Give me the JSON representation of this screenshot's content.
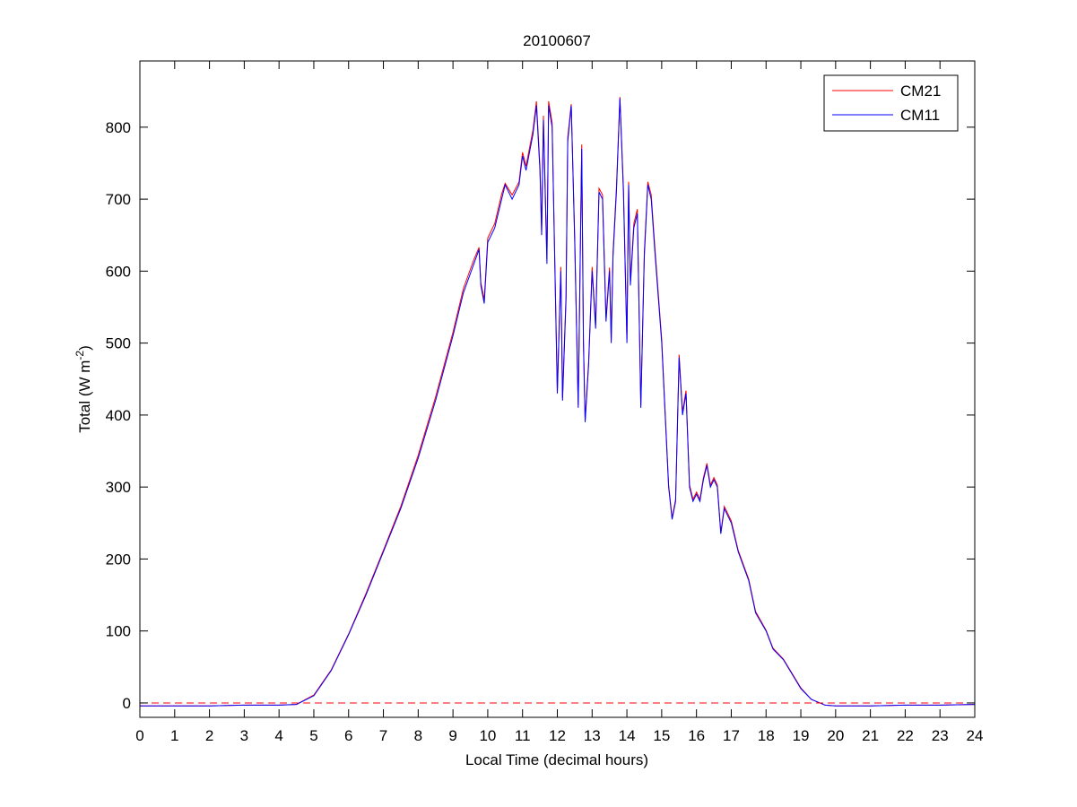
{
  "chart_data": {
    "type": "line",
    "title": "20100607",
    "xlabel": "Local Time (decimal hours)",
    "ylabel": "Total (W m",
    "ylabel_sup": "-2",
    "ylabel_end": ")",
    "xlim": [
      0,
      24
    ],
    "ylim": [
      -20,
      892
    ],
    "xticks": [
      0,
      1,
      2,
      3,
      4,
      5,
      6,
      7,
      8,
      9,
      10,
      11,
      12,
      13,
      14,
      15,
      16,
      17,
      18,
      19,
      20,
      21,
      22,
      23,
      24
    ],
    "yticks": [
      0,
      100,
      200,
      300,
      400,
      500,
      600,
      700,
      800
    ],
    "grid": false,
    "legend_position": "top-right",
    "reference_line": {
      "y": 0,
      "style": "dashed",
      "color": "#ff0000"
    },
    "x": [
      0,
      1,
      2,
      3,
      4,
      4.5,
      5,
      5.5,
      6,
      6.5,
      7,
      7.5,
      8,
      8.5,
      9,
      9.3,
      9.6,
      9.75,
      9.8,
      9.9,
      10,
      10.2,
      10.4,
      10.5,
      10.7,
      10.9,
      11,
      11.1,
      11.3,
      11.4,
      11.5,
      11.55,
      11.6,
      11.7,
      11.75,
      11.85,
      12,
      12.1,
      12.15,
      12.25,
      12.3,
      12.4,
      12.5,
      12.6,
      12.7,
      12.75,
      12.8,
      12.9,
      13,
      13.1,
      13.2,
      13.3,
      13.4,
      13.5,
      13.55,
      13.6,
      13.7,
      13.8,
      13.9,
      14,
      14.05,
      14.1,
      14.2,
      14.3,
      14.4,
      14.5,
      14.6,
      14.7,
      14.8,
      15,
      15.2,
      15.3,
      15.4,
      15.5,
      15.6,
      15.7,
      15.8,
      15.9,
      16,
      16.1,
      16.2,
      16.3,
      16.4,
      16.5,
      16.6,
      16.7,
      16.8,
      17,
      17.2,
      17.5,
      17.7,
      18,
      18.2,
      18.5,
      19,
      19.3,
      19.7,
      20,
      21,
      22,
      23,
      24
    ],
    "series": [
      {
        "name": "CM21",
        "color": "#ff0000",
        "values": [
          -4,
          -4,
          -4,
          -3,
          -3,
          -2,
          11,
          46,
          96,
          152,
          212,
          273,
          344,
          425,
          515,
          576,
          616,
          633,
          584,
          560,
          646,
          666,
          707,
          722,
          706,
          724,
          765,
          746,
          796,
          836,
          746,
          656,
          816,
          616,
          836,
          806,
          434,
          606,
          424,
          566,
          786,
          832,
          646,
          414,
          776,
          505,
          394,
          474,
          606,
          525,
          715,
          706,
          535,
          605,
          505,
          626,
          716,
          842,
          716,
          505,
          724,
          585,
          666,
          686,
          414,
          626,
          724,
          706,
          636,
          505,
          303,
          257,
          283,
          484,
          404,
          434,
          303,
          283,
          293,
          283,
          313,
          333,
          303,
          313,
          303,
          237,
          273,
          253,
          212,
          172,
          127,
          101,
          76,
          61,
          21,
          5,
          -3,
          -4,
          -4,
          -3,
          -3,
          -2
        ]
      },
      {
        "name": "CM11",
        "color": "#0000ff",
        "values": [
          -4,
          -4,
          -4,
          -3,
          -3,
          -2,
          10,
          45,
          95,
          150,
          210,
          270,
          340,
          420,
          510,
          570,
          610,
          630,
          580,
          555,
          640,
          660,
          700,
          720,
          700,
          720,
          760,
          740,
          790,
          830,
          740,
          650,
          810,
          610,
          830,
          800,
          430,
          600,
          420,
          560,
          780,
          830,
          640,
          410,
          770,
          500,
          390,
          470,
          600,
          520,
          710,
          700,
          530,
          600,
          500,
          620,
          710,
          840,
          710,
          500,
          720,
          580,
          660,
          680,
          410,
          620,
          720,
          700,
          630,
          500,
          300,
          255,
          280,
          480,
          400,
          430,
          300,
          280,
          290,
          280,
          310,
          330,
          300,
          310,
          300,
          235,
          270,
          250,
          210,
          170,
          125,
          100,
          75,
          60,
          20,
          5,
          -3,
          -4,
          -4,
          -3,
          -3,
          -2
        ]
      }
    ]
  }
}
